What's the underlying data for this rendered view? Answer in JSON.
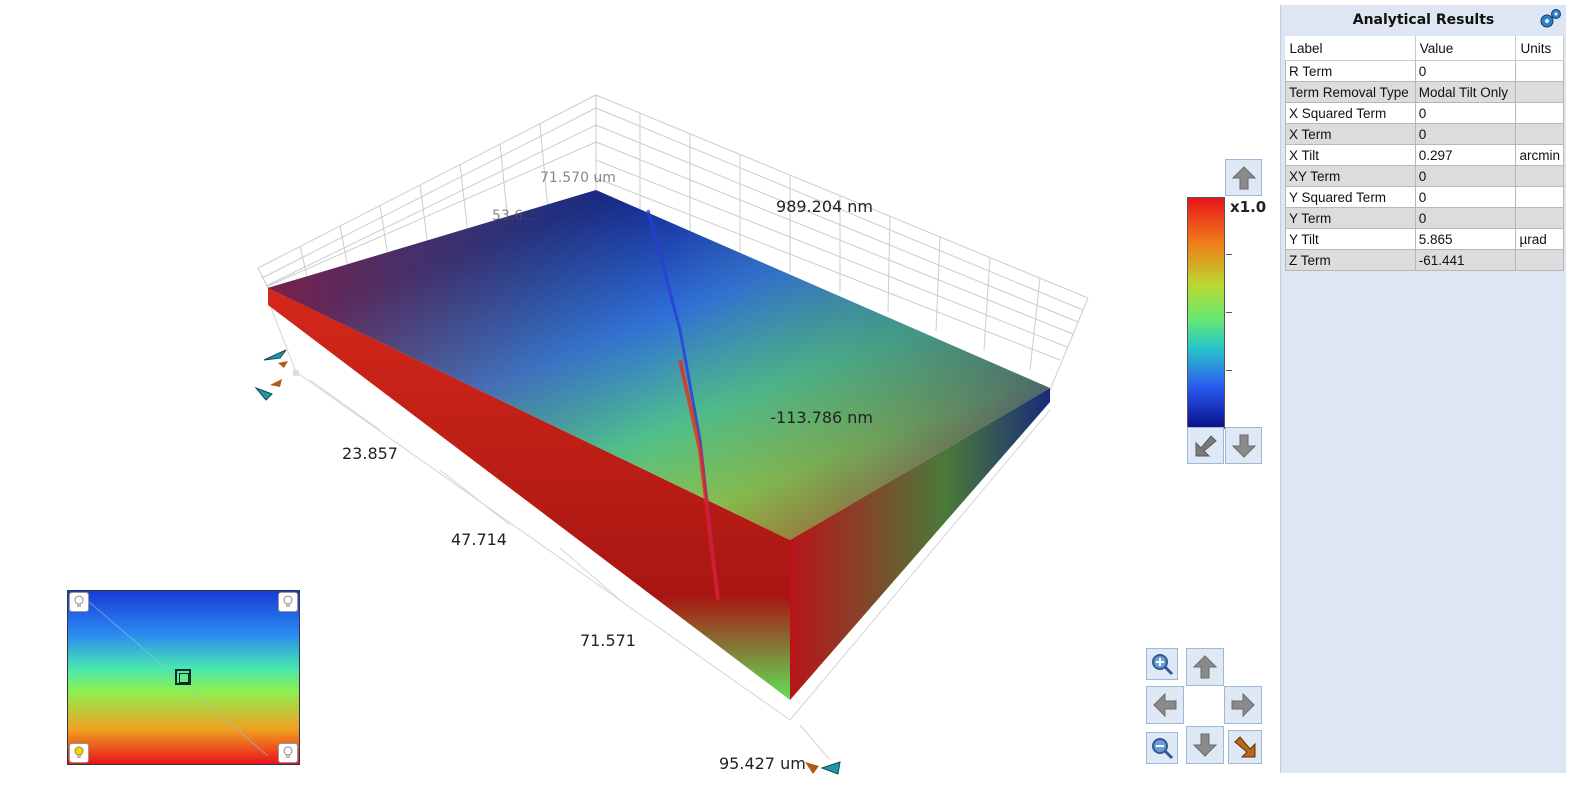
{
  "plot": {
    "axis_ticks": [
      "23.857",
      "47.714",
      "71.571",
      "95.427 um"
    ],
    "faded_labels": [
      "71.570 um",
      "53.6..."
    ]
  },
  "color_scale": {
    "max_label": "989.204 nm",
    "min_label": "-113.786 nm",
    "zoom_label": "x1.0",
    "gradient_colors": [
      "#e8141c",
      "#f07f1a",
      "#b9d930",
      "#6be86f",
      "#28c7c8",
      "#2a5bf0",
      "#08108a"
    ]
  },
  "navigation": {
    "icons": [
      "zoom-in-icon",
      "arrow-up-icon",
      "arrow-left-icon",
      "arrow-right-icon",
      "zoom-out-icon",
      "arrow-down-icon",
      "reset-view-icon"
    ]
  },
  "panel": {
    "title": "Analytical Results",
    "columns": [
      "Label",
      "Value",
      "Units"
    ],
    "rows": [
      {
        "label": "R Term",
        "value": "0",
        "units": ""
      },
      {
        "label": "Term Removal Type",
        "value": "Modal Tilt Only",
        "units": ""
      },
      {
        "label": "X Squared Term",
        "value": "0",
        "units": ""
      },
      {
        "label": "X Term",
        "value": "0",
        "units": ""
      },
      {
        "label": "X Tilt",
        "value": "0.297",
        "units": "arcmin"
      },
      {
        "label": "XY Term",
        "value": "0",
        "units": ""
      },
      {
        "label": "Y Squared Term",
        "value": "0",
        "units": ""
      },
      {
        "label": "Y Term",
        "value": "0",
        "units": ""
      },
      {
        "label": "Y Tilt",
        "value": "5.865",
        "units": "µrad"
      },
      {
        "label": "Z Term",
        "value": "-61.441",
        "units": ""
      }
    ]
  }
}
